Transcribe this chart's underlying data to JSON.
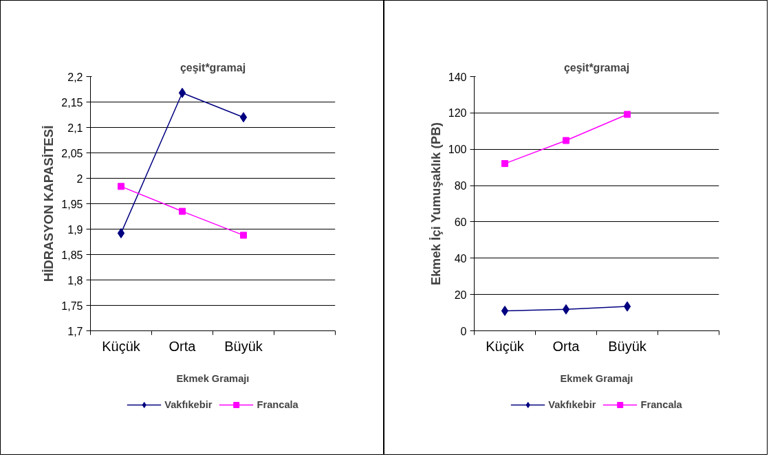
{
  "chart_data": [
    {
      "type": "line",
      "title": "çeşit*gramaj",
      "xlabel": "Ekmek Gramajı",
      "ylabel": "HİDRASYON KAPASİTESİ",
      "categories": [
        "Küçük",
        "Orta",
        "Büyük",
        null
      ],
      "series": [
        {
          "name": "Vakfıkebir",
          "color": "#000080",
          "marker": "diamond",
          "values": [
            1.892,
            2.168,
            2.12,
            null
          ]
        },
        {
          "name": "Francala",
          "color": "#ff00ff",
          "marker": "square",
          "values": [
            1.984,
            1.935,
            1.888,
            null
          ]
        }
      ],
      "ylim": [
        1.7,
        2.2
      ],
      "yticks": [
        {
          "value": 1.7,
          "label": "1,7"
        },
        {
          "value": 1.75,
          "label": "1,75"
        },
        {
          "value": 1.8,
          "label": "1,8"
        },
        {
          "value": 1.85,
          "label": "1,85"
        },
        {
          "value": 1.9,
          "label": "1,9"
        },
        {
          "value": 1.95,
          "label": "1,95"
        },
        2,
        {
          "value": 2.05,
          "label": "2,05"
        },
        {
          "value": 2.1,
          "label": "2,1"
        },
        {
          "value": 2.15,
          "label": "2,15"
        },
        {
          "value": 2.2,
          "label": "2,2"
        }
      ],
      "grid": "y",
      "legend": "bottom"
    },
    {
      "type": "line",
      "title": "çeşit*gramaj",
      "xlabel": "Ekmek Gramajı",
      "ylabel": "Ekmek İçi Yumuşaklık (PB)",
      "categories": [
        "Küçük",
        "Orta",
        "Büyük",
        null
      ],
      "series": [
        {
          "name": "Vakfıkebir",
          "color": "#000080",
          "marker": "diamond",
          "values": [
            11.0,
            11.8,
            13.4,
            null
          ]
        },
        {
          "name": "Francala",
          "color": "#ff00ff",
          "marker": "square",
          "values": [
            92.1,
            104.8,
            119.2,
            null
          ]
        }
      ],
      "ylim": [
        0,
        140
      ],
      "yticks": [
        0,
        20,
        40,
        60,
        80,
        100,
        120,
        140
      ],
      "grid": "y",
      "legend": "bottom"
    }
  ]
}
